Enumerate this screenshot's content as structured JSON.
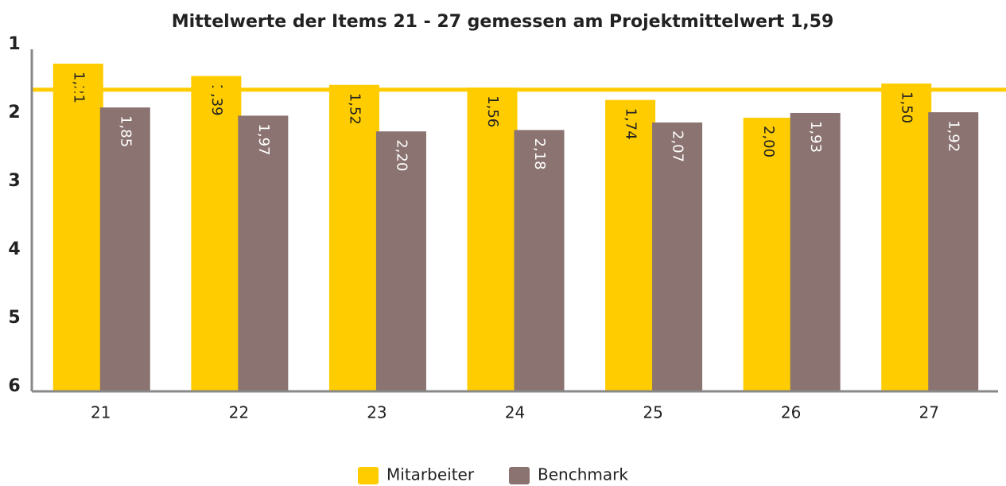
{
  "chart_data": {
    "type": "bar",
    "title": "Mittelwerte der Items 21 - 27 gemessen am Projektmittelwert 1,59",
    "categories": [
      "21",
      "22",
      "23",
      "24",
      "25",
      "26",
      "27"
    ],
    "series": [
      {
        "name": "Mitarbeiter",
        "color": "#ffcc00",
        "values": [
          1.21,
          1.39,
          1.52,
          1.56,
          1.74,
          2.0,
          1.5
        ],
        "value_labels": [
          "1,21",
          "1,39",
          "1,52",
          "1,56",
          "1,74",
          "2,00",
          "1,50"
        ]
      },
      {
        "name": "Benchmark",
        "color": "#8a7370",
        "values": [
          1.85,
          1.97,
          2.2,
          2.18,
          2.07,
          1.93,
          1.92
        ],
        "value_labels": [
          "1,85",
          "1,97",
          "2,20",
          "2,18",
          "2,07",
          "1,93",
          "1,92"
        ]
      }
    ],
    "reference_line": {
      "value": 1.59,
      "color": "#ffcc00"
    },
    "ylim": [
      1,
      6
    ],
    "yticks": [
      1,
      2,
      3,
      4,
      5,
      6
    ],
    "y_inverted": true,
    "legend": "bottom"
  }
}
